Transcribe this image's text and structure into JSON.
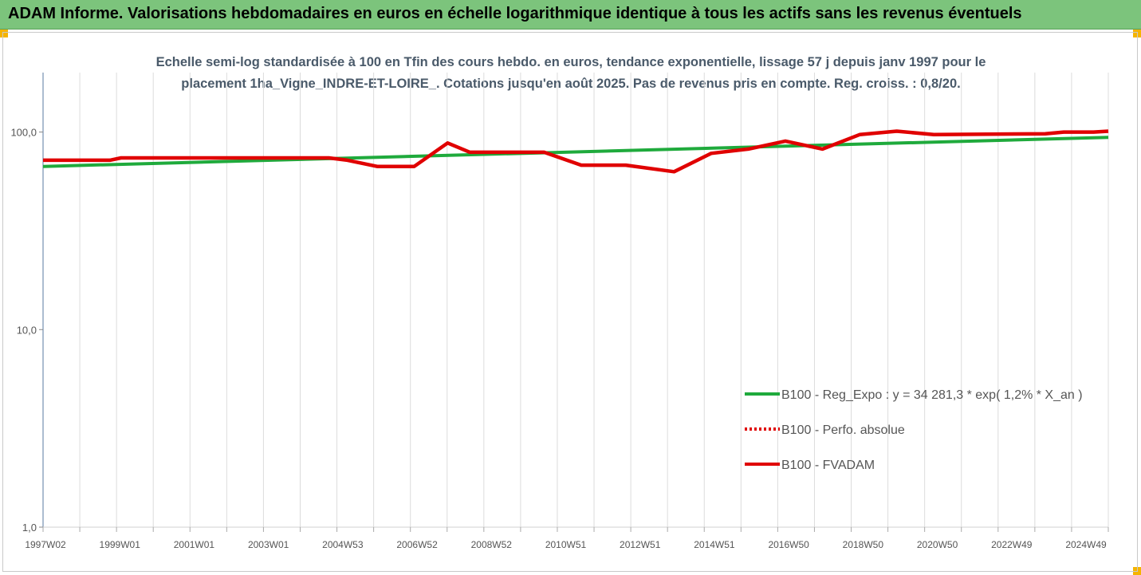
{
  "window": {
    "title": "ADAM Informe. Valorisations hebdomadaires en euros en échelle logarithmique identique à tous les actifs sans les revenus éventuels",
    "title_bar_color": "#7cc47c",
    "corner_tab_color": "#f5b400"
  },
  "chart_data": {
    "type": "line",
    "title_lines": [
      "Echelle semi-log standardisée à 100 en Tfin des cours hebdo. en euros, tendance exponentielle, lissage 57 j depuis janv 1997 pour le",
      "placement 1ha_Vigne_INDRE-ET-LOIRE_. Cotations jusqu'en août 2025. Pas de revenus pris en compte. Reg. croiss. : 0,8/20."
    ],
    "y_scale": "log",
    "ylim": [
      1,
      200
    ],
    "y_ticks": [
      {
        "value": 1,
        "label": "1,0"
      },
      {
        "value": 10,
        "label": "10,0"
      },
      {
        "value": 100,
        "label": "100,0"
      }
    ],
    "x_tick_labels": [
      "1997W02",
      "1999W01",
      "2001W01",
      "2003W01",
      "2004W53",
      "2006W52",
      "2008W52",
      "2010W51",
      "2012W51",
      "2014W51",
      "2016W50",
      "2018W50",
      "2020W50",
      "2022W49",
      "2024W49"
    ],
    "xlim": [
      1997.0,
      2025.7
    ],
    "grid": "vertical",
    "legend_position": "right-middle",
    "series": [
      {
        "name": "B100 - Reg_Expo : y = 34 281,3 * exp( 1,2% *  X_an )",
        "color": "#1faa3c",
        "style": "solid",
        "points": [
          [
            1997.0,
            67
          ],
          [
            2025.7,
            94
          ]
        ]
      },
      {
        "name": "B100 - Perfo. absolue",
        "color": "#e00000",
        "style": "dotted",
        "points": []
      },
      {
        "name": "B100 - FVADAM",
        "color": "#e00000",
        "style": "solid",
        "points": [
          [
            1997.0,
            72
          ],
          [
            1998.8,
            72
          ],
          [
            1999.1,
            74
          ],
          [
            2004.7,
            74
          ],
          [
            2005.2,
            72
          ],
          [
            2006.0,
            67
          ],
          [
            2007.0,
            67
          ],
          [
            2007.9,
            88
          ],
          [
            2008.5,
            79
          ],
          [
            2010.5,
            79
          ],
          [
            2011.5,
            68
          ],
          [
            2012.7,
            68
          ],
          [
            2014.0,
            63
          ],
          [
            2015.0,
            78
          ],
          [
            2016.0,
            82
          ],
          [
            2017.0,
            90
          ],
          [
            2018.0,
            82
          ],
          [
            2019.0,
            97
          ],
          [
            2020.0,
            101
          ],
          [
            2021.0,
            97
          ],
          [
            2024.0,
            98
          ],
          [
            2024.5,
            100
          ],
          [
            2025.3,
            100
          ],
          [
            2025.7,
            101
          ]
        ]
      }
    ]
  }
}
